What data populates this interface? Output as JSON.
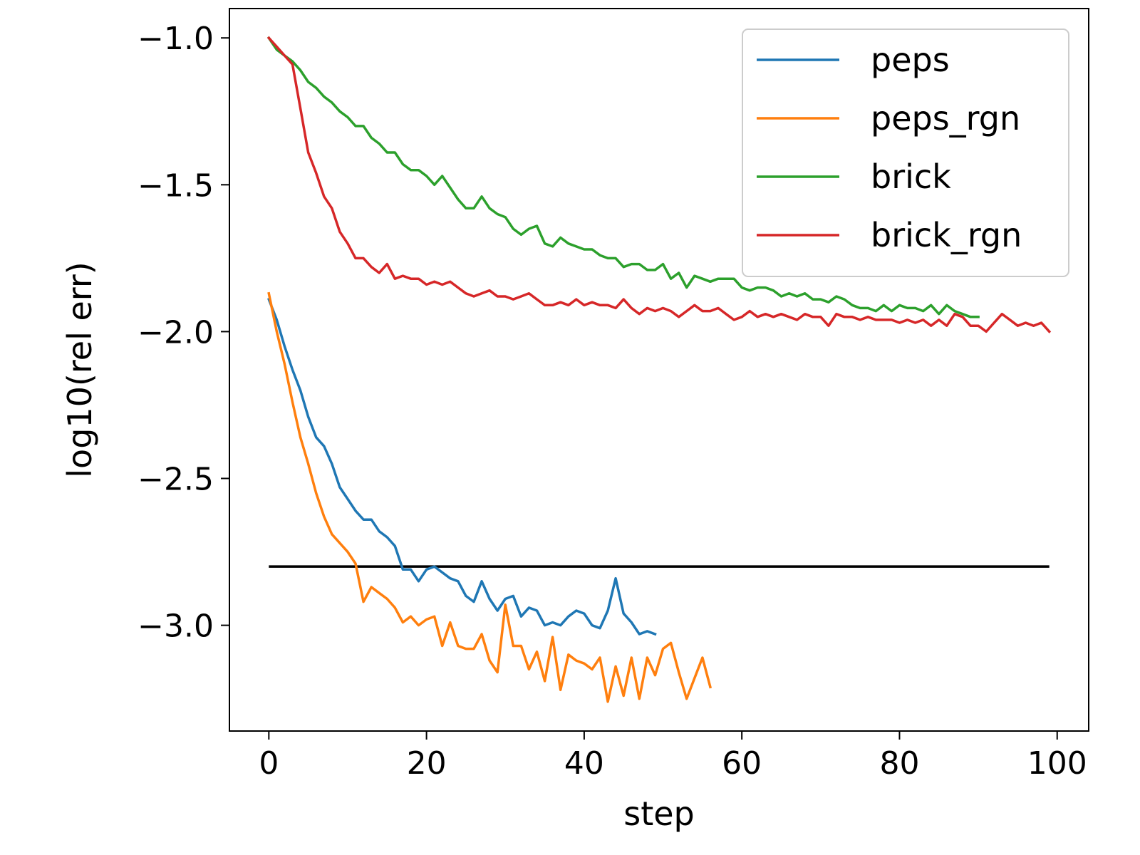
{
  "chart_data": {
    "type": "line",
    "xlabel": "step",
    "ylabel": "log10(rel err)",
    "xlim": [
      -5,
      104
    ],
    "ylim": [
      -3.36,
      -0.9
    ],
    "xticks": [
      0,
      20,
      40,
      60,
      80,
      100
    ],
    "xtick_labels": [
      "0",
      "20",
      "40",
      "60",
      "80",
      "100"
    ],
    "yticks": [
      -1.0,
      -1.5,
      -2.0,
      -2.5,
      -3.0
    ],
    "ytick_labels": [
      "−1.0",
      "−1.5",
      "−2.0",
      "−2.5",
      "−3.0"
    ],
    "grid": false,
    "legend": {
      "placement": "top-right"
    },
    "reference_line": {
      "y": -2.8,
      "x_range": [
        0,
        99
      ],
      "color": "#000000"
    },
    "series": [
      {
        "name": "peps",
        "color": "#1f77b4",
        "x_start": 0,
        "values": [
          -1.89,
          -1.96,
          -2.05,
          -2.13,
          -2.2,
          -2.29,
          -2.36,
          -2.39,
          -2.45,
          -2.53,
          -2.57,
          -2.61,
          -2.64,
          -2.64,
          -2.68,
          -2.7,
          -2.73,
          -2.81,
          -2.81,
          -2.85,
          -2.81,
          -2.8,
          -2.82,
          -2.84,
          -2.85,
          -2.9,
          -2.92,
          -2.85,
          -2.91,
          -2.95,
          -2.91,
          -2.9,
          -2.97,
          -2.94,
          -2.95,
          -3.0,
          -2.99,
          -3.0,
          -2.97,
          -2.95,
          -2.96,
          -3.0,
          -3.01,
          -2.95,
          -2.84,
          -2.96,
          -2.99,
          -3.03,
          -3.02,
          -3.03
        ]
      },
      {
        "name": "peps_rgn",
        "color": "#ff7f0e",
        "x_start": 0,
        "values": [
          -1.87,
          -2.0,
          -2.11,
          -2.24,
          -2.36,
          -2.45,
          -2.55,
          -2.63,
          -2.69,
          -2.72,
          -2.75,
          -2.79,
          -2.92,
          -2.87,
          -2.89,
          -2.91,
          -2.94,
          -2.99,
          -2.97,
          -3.0,
          -2.98,
          -2.97,
          -3.07,
          -2.99,
          -3.07,
          -3.08,
          -3.08,
          -3.03,
          -3.12,
          -3.16,
          -2.93,
          -3.07,
          -3.07,
          -3.15,
          -3.09,
          -3.19,
          -3.04,
          -3.22,
          -3.1,
          -3.12,
          -3.13,
          -3.15,
          -3.11,
          -3.26,
          -3.14,
          -3.24,
          -3.11,
          -3.25,
          -3.11,
          -3.17,
          -3.08,
          -3.06,
          -3.16,
          -3.25,
          -3.18,
          -3.11,
          -3.21
        ]
      },
      {
        "name": "brick",
        "color": "#2ca02c",
        "x_start": 0,
        "values": [
          -1.0,
          -1.04,
          -1.06,
          -1.08,
          -1.11,
          -1.15,
          -1.17,
          -1.2,
          -1.22,
          -1.25,
          -1.27,
          -1.3,
          -1.3,
          -1.34,
          -1.36,
          -1.39,
          -1.39,
          -1.43,
          -1.45,
          -1.45,
          -1.47,
          -1.5,
          -1.47,
          -1.51,
          -1.55,
          -1.58,
          -1.58,
          -1.54,
          -1.58,
          -1.6,
          -1.61,
          -1.65,
          -1.67,
          -1.65,
          -1.64,
          -1.7,
          -1.71,
          -1.68,
          -1.7,
          -1.71,
          -1.72,
          -1.72,
          -1.74,
          -1.75,
          -1.75,
          -1.78,
          -1.77,
          -1.77,
          -1.79,
          -1.79,
          -1.77,
          -1.82,
          -1.8,
          -1.85,
          -1.81,
          -1.82,
          -1.83,
          -1.82,
          -1.82,
          -1.82,
          -1.85,
          -1.86,
          -1.85,
          -1.85,
          -1.86,
          -1.88,
          -1.87,
          -1.88,
          -1.87,
          -1.89,
          -1.89,
          -1.9,
          -1.88,
          -1.89,
          -1.91,
          -1.92,
          -1.92,
          -1.93,
          -1.91,
          -1.93,
          -1.91,
          -1.92,
          -1.92,
          -1.93,
          -1.91,
          -1.94,
          -1.91,
          -1.93,
          -1.94,
          -1.95,
          -1.95
        ]
      },
      {
        "name": "brick_rgn",
        "color": "#d62728",
        "x_start": 0,
        "values": [
          -1.0,
          -1.03,
          -1.06,
          -1.09,
          -1.24,
          -1.39,
          -1.46,
          -1.54,
          -1.58,
          -1.66,
          -1.7,
          -1.75,
          -1.75,
          -1.78,
          -1.8,
          -1.77,
          -1.82,
          -1.81,
          -1.82,
          -1.82,
          -1.84,
          -1.83,
          -1.84,
          -1.83,
          -1.85,
          -1.87,
          -1.88,
          -1.87,
          -1.86,
          -1.88,
          -1.88,
          -1.89,
          -1.88,
          -1.87,
          -1.89,
          -1.91,
          -1.91,
          -1.9,
          -1.91,
          -1.89,
          -1.91,
          -1.9,
          -1.91,
          -1.91,
          -1.92,
          -1.89,
          -1.92,
          -1.94,
          -1.92,
          -1.93,
          -1.92,
          -1.93,
          -1.95,
          -1.93,
          -1.91,
          -1.93,
          -1.93,
          -1.92,
          -1.94,
          -1.96,
          -1.95,
          -1.93,
          -1.95,
          -1.94,
          -1.95,
          -1.94,
          -1.95,
          -1.96,
          -1.94,
          -1.95,
          -1.95,
          -1.98,
          -1.94,
          -1.95,
          -1.95,
          -1.96,
          -1.95,
          -1.96,
          -1.96,
          -1.96,
          -1.97,
          -1.96,
          -1.97,
          -1.96,
          -1.98,
          -1.96,
          -1.98,
          -1.94,
          -1.95,
          -1.98,
          -1.98,
          -2.0,
          -1.97,
          -1.94,
          -1.96,
          -1.98,
          -1.97,
          -1.98,
          -1.97,
          -2.0
        ]
      }
    ]
  }
}
